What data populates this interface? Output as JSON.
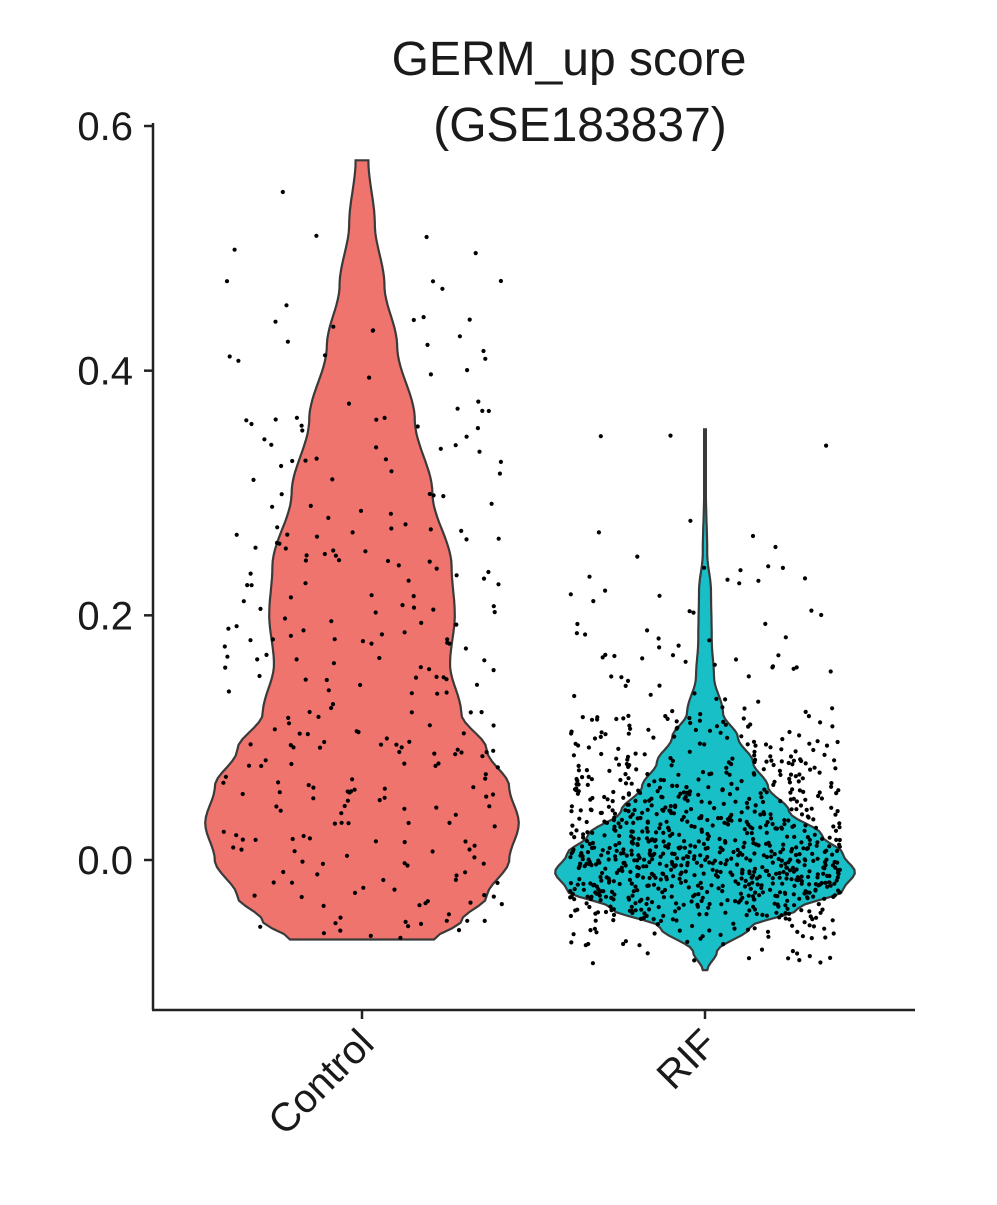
{
  "chart_data": {
    "type": "violin",
    "title": "GERM_up score",
    "subtitle": "(GSE183837)",
    "xlabel": "",
    "ylabel": "",
    "ylim": [
      -0.1,
      0.61
    ],
    "yticks": [
      0.0,
      0.2,
      0.4,
      0.6
    ],
    "ytick_labels": [
      "0.0",
      "0.2",
      "0.4",
      "0.6"
    ],
    "grid": false,
    "legend": "none",
    "categories": [
      "Control",
      "RIF"
    ],
    "series": [
      {
        "category": "Control",
        "color": "#F0746E",
        "min": -0.065,
        "max": 0.572,
        "n_points": 300,
        "density_profile": [
          [
            -0.065,
            0.45
          ],
          [
            -0.05,
            0.62
          ],
          [
            -0.03,
            0.78
          ],
          [
            0.0,
            0.92
          ],
          [
            0.03,
            0.98
          ],
          [
            0.06,
            0.92
          ],
          [
            0.09,
            0.78
          ],
          [
            0.12,
            0.62
          ],
          [
            0.16,
            0.55
          ],
          [
            0.2,
            0.58
          ],
          [
            0.24,
            0.56
          ],
          [
            0.3,
            0.44
          ],
          [
            0.36,
            0.33
          ],
          [
            0.42,
            0.22
          ],
          [
            0.47,
            0.14
          ],
          [
            0.52,
            0.08
          ],
          [
            0.572,
            0.04
          ]
        ]
      },
      {
        "category": "RIF",
        "color": "#18BFC6",
        "min": -0.09,
        "max": 0.352,
        "n_points": 1000,
        "density_profile": [
          [
            -0.09,
            0.015
          ],
          [
            -0.075,
            0.08
          ],
          [
            -0.055,
            0.3
          ],
          [
            -0.04,
            0.62
          ],
          [
            -0.025,
            0.92
          ],
          [
            -0.01,
            1.0
          ],
          [
            0.005,
            0.92
          ],
          [
            0.02,
            0.78
          ],
          [
            0.04,
            0.56
          ],
          [
            0.06,
            0.42
          ],
          [
            0.08,
            0.32
          ],
          [
            0.1,
            0.22
          ],
          [
            0.12,
            0.12
          ],
          [
            0.15,
            0.06
          ],
          [
            0.18,
            0.045
          ],
          [
            0.22,
            0.04
          ],
          [
            0.25,
            0.015
          ],
          [
            0.3,
            0.006
          ],
          [
            0.352,
            0.006
          ]
        ]
      }
    ]
  }
}
